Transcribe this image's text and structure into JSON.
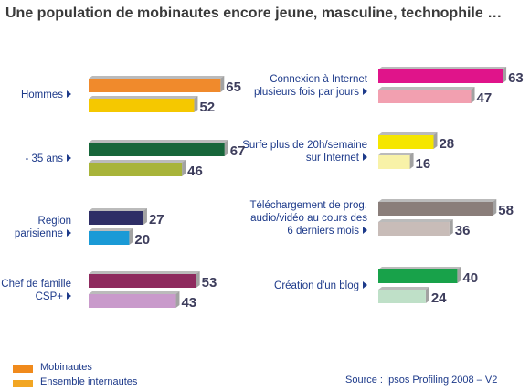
{
  "title": "Une population de mobinautes encore jeune, masculine, technophile …",
  "source": "Source : Ipsos Profiling 2008 – V2",
  "legend": [
    {
      "label": "Mobinautes",
      "color": "#F08A1C"
    },
    {
      "label": "Ensemble internautes",
      "color": "#F2A623"
    }
  ],
  "chart_data": [
    {
      "type": "bar",
      "orientation": "horizontal",
      "series": [
        {
          "name": "Mobinautes"
        },
        {
          "name": "Ensemble internautes"
        }
      ],
      "groups": [
        {
          "label": [
            "Hommes"
          ],
          "values": [
            65,
            52
          ],
          "colors": [
            "#F08A2C",
            "#F5C800"
          ]
        },
        {
          "label": [
            "- 35 ans"
          ],
          "values": [
            67,
            46
          ],
          "colors": [
            "#17663A",
            "#A8B43A"
          ]
        },
        {
          "label": [
            "Region",
            "parisienne"
          ],
          "values": [
            27,
            20
          ],
          "colors": [
            "#2E2E66",
            "#1A9AD6"
          ]
        },
        {
          "label": [
            "Chef de famille",
            "CSP+"
          ],
          "values": [
            53,
            43
          ],
          "colors": [
            "#8E2A5E",
            "#C99ACB"
          ]
        }
      ]
    },
    {
      "type": "bar",
      "orientation": "horizontal",
      "series": [
        {
          "name": "Mobinautes"
        },
        {
          "name": "Ensemble internautes"
        }
      ],
      "groups": [
        {
          "label": [
            "Connexion à Internet",
            "plusieurs fois par jours"
          ],
          "values": [
            63,
            47
          ],
          "colors": [
            "#E0148A",
            "#F2A0B0"
          ]
        },
        {
          "label": [
            "Surfe plus de 20h/semaine",
            "sur Internet"
          ],
          "values": [
            28,
            16
          ],
          "colors": [
            "#F5E600",
            "#F8F2A8"
          ]
        },
        {
          "label": [
            "Téléchargement de prog.",
            "audio/vidéo au cours des",
            "6 derniers mois"
          ],
          "values": [
            58,
            36
          ],
          "colors": [
            "#8A7E7A",
            "#C8BCB8"
          ]
        },
        {
          "label": [
            "Création d'un blog"
          ],
          "values": [
            40,
            24
          ],
          "colors": [
            "#18A24A",
            "#BFE0C8"
          ]
        }
      ]
    }
  ]
}
